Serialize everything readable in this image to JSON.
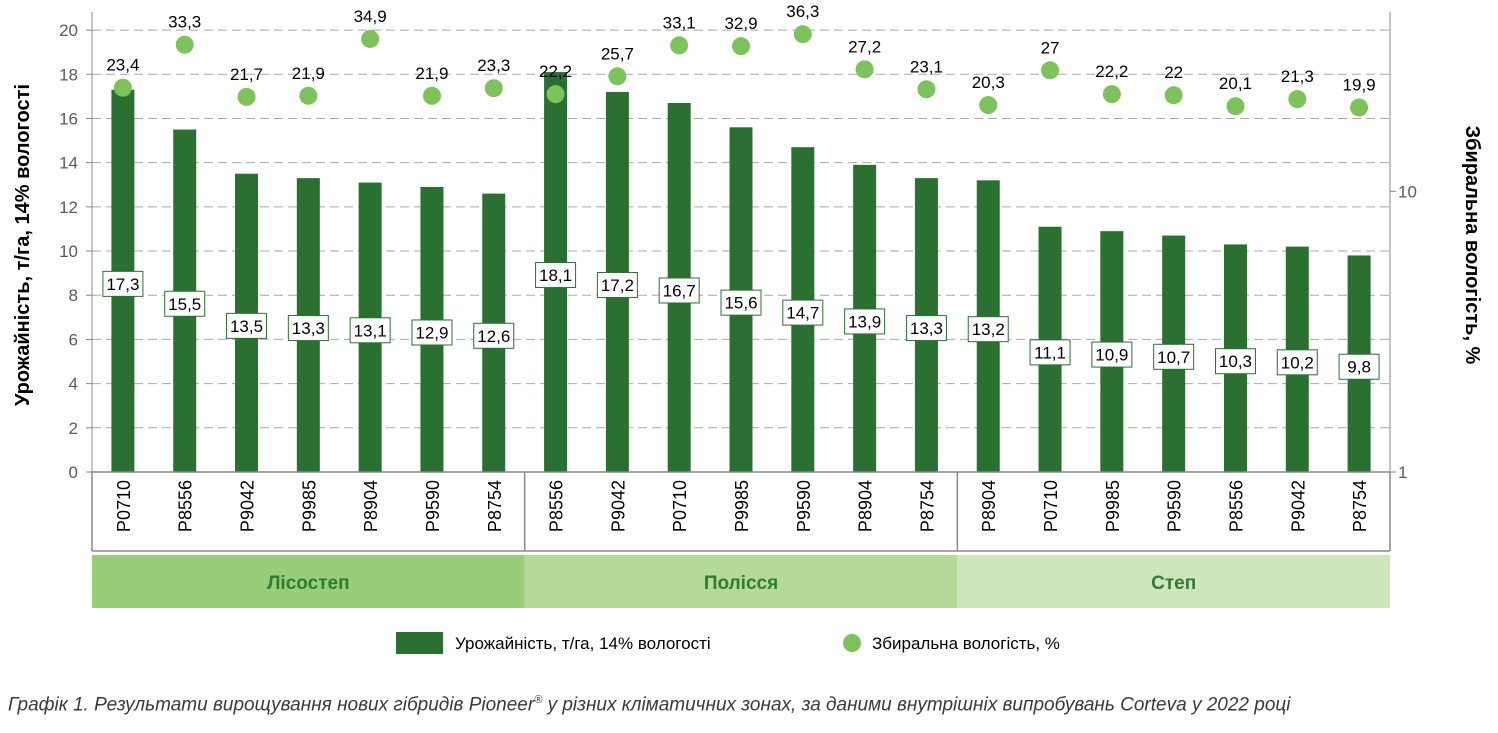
{
  "chart_data": {
    "type": "bar",
    "title": "",
    "ylabel": "Урожайність, т/га, 14% вологості",
    "ylabel_right": "Збиральна вологість, %",
    "ylim": [
      0,
      21
    ],
    "yticks": [
      0,
      2,
      4,
      6,
      8,
      10,
      12,
      14,
      16,
      18,
      20
    ],
    "y2_scale": "log",
    "y2lim": [
      1,
      45
    ],
    "y2ticks": [
      1,
      10
    ],
    "categories": [
      "P0710",
      "P8556",
      "P9042",
      "P9985",
      "P8904",
      "P9590",
      "P8754",
      "P8556",
      "P9042",
      "P0710",
      "P9985",
      "P9590",
      "P8904",
      "P8754",
      "P8904",
      "P0710",
      "P9985",
      "P9590",
      "P8556",
      "P9042",
      "P8754"
    ],
    "series": [
      {
        "name": "Урожайність, т/га, 14% вологості",
        "type": "bar",
        "color": "#2a7030",
        "values": [
          17.3,
          15.5,
          13.5,
          13.3,
          13.1,
          12.9,
          12.6,
          18.1,
          17.2,
          16.7,
          15.6,
          14.7,
          13.9,
          13.3,
          13.2,
          11.1,
          10.9,
          10.7,
          10.3,
          10.2,
          9.8
        ],
        "labels": [
          "17,3",
          "15,5",
          "13,5",
          "13,3",
          "13,1",
          "12,9",
          "12,6",
          "18,1",
          "17,2",
          "16,7",
          "15,6",
          "14,7",
          "13,9",
          "13,3",
          "13,2",
          "11,1",
          "10,9",
          "10,7",
          "10,3",
          "10,2",
          "9,8"
        ]
      },
      {
        "name": "Збиральна вологість, %",
        "type": "scatter",
        "axis": "right",
        "color": "#7cc35a",
        "values": [
          23.4,
          33.3,
          21.7,
          21.9,
          34.9,
          21.9,
          23.3,
          22.2,
          25.7,
          33.1,
          32.9,
          36.3,
          27.2,
          23.1,
          20.3,
          27,
          22.2,
          22,
          20.1,
          21.3,
          19.9
        ],
        "labels": [
          "23,4",
          "33,3",
          "21,7",
          "21,9",
          "34,9",
          "21,9",
          "23,3",
          "22,2",
          "25,7",
          "33,1",
          "32,9",
          "36,3",
          "27,2",
          "23,1",
          "20,3",
          "27",
          "22,2",
          "22",
          "20,1",
          "21,3",
          "19,9"
        ]
      }
    ],
    "groups": [
      {
        "name": "Лісостеп",
        "count": 7,
        "color": "#98cd7a"
      },
      {
        "name": "Полісся",
        "count": 7,
        "color": "#b3da97"
      },
      {
        "name": "Степ",
        "count": 7,
        "color": "#cde6bb"
      }
    ],
    "legend": [
      "Урожайність, т/га, 14% вологості",
      "Збиральна вологість, %"
    ],
    "grid": true
  },
  "caption": {
    "text": "Графік 1. Результати вирощування нових гібридів Pioneer",
    "sup": "®",
    "text_after": " у різних кліматичних зонах, за даними внутрішніх випробувань Corteva у 2022 році"
  }
}
